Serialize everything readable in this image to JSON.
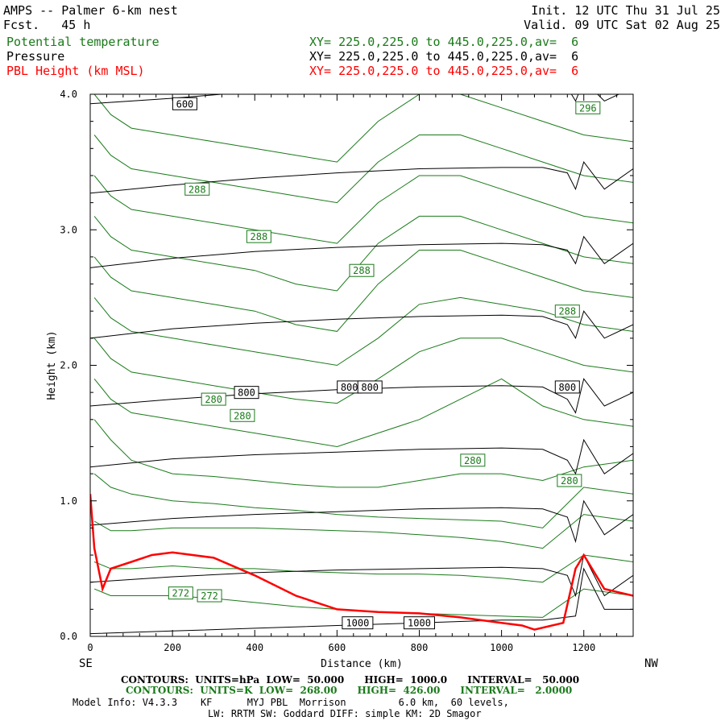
{
  "header": {
    "title": "AMPS -- Palmer 6-km nest",
    "fcst": "Fcst.   45 h",
    "init": "Init. 12 UTC Thu 31 Jul 25",
    "valid": "Valid. 09 UTC Sat 02 Aug 25",
    "field1": "Potential temperature",
    "field2": "Pressure",
    "field3": "PBL Height (km MSL)",
    "xy1": "XY= 225.0,225.0 to 445.0,225.0,av=  6",
    "xy2": "XY= 225.0,225.0 to 445.0,225.0,av=  6",
    "xy3": "XY= 225.0,225.0 to 445.0,225.0,av=  6"
  },
  "footer": {
    "line1": "CONTOURS:  UNITS=hPa  LOW=  50.000      HIGH=  1000.0      INTERVAL=   50.000",
    "line2": "CONTOURS:  UNITS=K  LOW=  268.00      HIGH=  426.00      INTERVAL=   2.0000",
    "line3": "Model Info: V4.3.3    KF      MYJ PBL  Morrison         6.0 km,  60 levels,",
    "line4": "LW: RRTM SW: Goddard DIFF: simple KM: 2D Smagor"
  },
  "colors": {
    "theta": "#1a7a1a",
    "pressure": "#000000",
    "pbl": "#ff0000"
  },
  "chart_data": {
    "type": "line",
    "xlabel": "Distance (km)",
    "ylabel": "Height (km)",
    "xlim": [
      0,
      1320
    ],
    "ylim": [
      0,
      4.0
    ],
    "x_ticks": [
      "0",
      "200",
      "400",
      "600",
      "800",
      "1000",
      "1200"
    ],
    "y_ticks": [
      "0.0",
      "1.0",
      "2.0",
      "3.0",
      "4.0"
    ],
    "left_end_label": "SE",
    "right_end_label": "NW",
    "pressure_contours_hPa": [
      {
        "level": 1000,
        "x": [
          0,
          200,
          400,
          600,
          800,
          1000,
          1100,
          1180,
          1200,
          1250,
          1320
        ],
        "y": [
          0.02,
          0.04,
          0.06,
          0.08,
          0.1,
          0.12,
          0.12,
          0.15,
          0.5,
          0.2,
          0.2
        ]
      },
      {
        "level": 950,
        "x": [
          0,
          200,
          400,
          600,
          800,
          1000,
          1100,
          1160,
          1180,
          1200,
          1250,
          1320
        ],
        "y": [
          0.4,
          0.44,
          0.47,
          0.49,
          0.5,
          0.51,
          0.5,
          0.45,
          0.3,
          0.6,
          0.3,
          0.45
        ]
      },
      {
        "level": 900,
        "x": [
          0,
          200,
          400,
          600,
          800,
          1000,
          1100,
          1160,
          1180,
          1200,
          1250,
          1320
        ],
        "y": [
          0.82,
          0.87,
          0.9,
          0.92,
          0.94,
          0.95,
          0.94,
          0.88,
          0.7,
          1.0,
          0.75,
          0.9
        ]
      },
      {
        "level": 850,
        "x": [
          0,
          200,
          400,
          600,
          800,
          1000,
          1100,
          1160,
          1180,
          1200,
          1250,
          1320
        ],
        "y": [
          1.25,
          1.31,
          1.34,
          1.36,
          1.38,
          1.39,
          1.38,
          1.3,
          1.2,
          1.45,
          1.2,
          1.35
        ]
      },
      {
        "level": 800,
        "x": [
          0,
          200,
          400,
          600,
          800,
          1000,
          1100,
          1160,
          1180,
          1200,
          1250,
          1320
        ],
        "y": [
          1.7,
          1.75,
          1.79,
          1.82,
          1.84,
          1.85,
          1.84,
          1.75,
          1.65,
          1.9,
          1.7,
          1.8
        ]
      },
      {
        "level": 750,
        "x": [
          0,
          200,
          400,
          600,
          800,
          1000,
          1100,
          1160,
          1180,
          1200,
          1250,
          1320
        ],
        "y": [
          2.2,
          2.27,
          2.31,
          2.34,
          2.36,
          2.37,
          2.36,
          2.3,
          2.2,
          2.4,
          2.2,
          2.3
        ]
      },
      {
        "level": 700,
        "x": [
          0,
          200,
          400,
          600,
          800,
          1000,
          1100,
          1160,
          1180,
          1200,
          1250,
          1320
        ],
        "y": [
          2.72,
          2.79,
          2.84,
          2.87,
          2.89,
          2.9,
          2.89,
          2.85,
          2.75,
          2.95,
          2.75,
          2.9
        ]
      },
      {
        "level": 650,
        "x": [
          0,
          200,
          400,
          600,
          800,
          1000,
          1100,
          1160,
          1180,
          1200,
          1250,
          1320
        ],
        "y": [
          3.27,
          3.33,
          3.38,
          3.42,
          3.45,
          3.46,
          3.46,
          3.42,
          3.3,
          3.5,
          3.3,
          3.45
        ]
      },
      {
        "level": 600,
        "x": [
          0,
          200,
          400,
          600,
          800,
          1000,
          1100,
          1160,
          1180,
          1200,
          1250,
          1320
        ],
        "y": [
          3.93,
          3.97,
          4.02,
          4.05,
          4.08,
          4.1,
          4.1,
          4.05,
          3.95,
          4.1,
          3.95,
          4.05
        ]
      }
    ],
    "theta_contours_K": [
      {
        "level": 272,
        "x": [
          10,
          50,
          100,
          200,
          300,
          400,
          500,
          600,
          700,
          800,
          900,
          1000,
          1100,
          1200,
          1320
        ],
        "y": [
          0.35,
          0.3,
          0.3,
          0.3,
          0.28,
          0.25,
          0.22,
          0.2,
          0.18,
          0.17,
          0.16,
          0.15,
          0.14,
          0.35,
          0.3
        ]
      },
      {
        "level": 274,
        "x": [
          10,
          50,
          100,
          200,
          300,
          400,
          500,
          600,
          700,
          800,
          900,
          1000,
          1100,
          1200,
          1320
        ],
        "y": [
          0.55,
          0.5,
          0.5,
          0.52,
          0.5,
          0.5,
          0.48,
          0.47,
          0.46,
          0.46,
          0.45,
          0.43,
          0.4,
          0.6,
          0.55
        ]
      },
      {
        "level": 276,
        "x": [
          10,
          50,
          100,
          200,
          300,
          400,
          500,
          600,
          700,
          800,
          900,
          1000,
          1100,
          1200,
          1320
        ],
        "y": [
          0.85,
          0.78,
          0.78,
          0.8,
          0.8,
          0.8,
          0.79,
          0.78,
          0.77,
          0.75,
          0.73,
          0.7,
          0.65,
          0.9,
          0.85
        ]
      },
      {
        "level": 278,
        "x": [
          10,
          50,
          100,
          200,
          300,
          400,
          500,
          600,
          700,
          800,
          900,
          1000,
          1100,
          1200,
          1320
        ],
        "y": [
          1.2,
          1.1,
          1.05,
          1.0,
          0.98,
          0.95,
          0.93,
          0.9,
          0.88,
          0.87,
          0.86,
          0.85,
          0.8,
          1.1,
          1.05
        ]
      },
      {
        "level": 280,
        "x": [
          10,
          50,
          100,
          200,
          300,
          400,
          500,
          600,
          700,
          800,
          900,
          1000,
          1100,
          1200,
          1320
        ],
        "y": [
          1.6,
          1.45,
          1.3,
          1.2,
          1.18,
          1.15,
          1.12,
          1.1,
          1.1,
          1.15,
          1.2,
          1.2,
          1.15,
          1.25,
          1.3
        ]
      },
      {
        "level": 282,
        "x": [
          10,
          50,
          100,
          200,
          300,
          400,
          500,
          600,
          700,
          800,
          900,
          1000,
          1100,
          1200,
          1320
        ],
        "y": [
          1.9,
          1.75,
          1.65,
          1.6,
          1.55,
          1.5,
          1.45,
          1.4,
          1.5,
          1.6,
          1.75,
          1.9,
          1.7,
          1.6,
          1.55
        ]
      },
      {
        "level": 284,
        "x": [
          10,
          50,
          100,
          200,
          300,
          400,
          500,
          600,
          700,
          800,
          900,
          1000,
          1100,
          1200,
          1320
        ],
        "y": [
          2.2,
          2.05,
          1.95,
          1.9,
          1.85,
          1.8,
          1.75,
          1.72,
          1.9,
          2.1,
          2.2,
          2.2,
          2.1,
          2.0,
          1.95
        ]
      },
      {
        "level": 286,
        "x": [
          10,
          50,
          100,
          200,
          300,
          400,
          500,
          600,
          700,
          800,
          900,
          1000,
          1100,
          1200,
          1320
        ],
        "y": [
          2.5,
          2.35,
          2.25,
          2.2,
          2.15,
          2.1,
          2.05,
          2.0,
          2.2,
          2.45,
          2.5,
          2.45,
          2.4,
          2.3,
          2.25
        ]
      },
      {
        "level": 288,
        "x": [
          10,
          50,
          100,
          200,
          300,
          400,
          500,
          600,
          700,
          800,
          900,
          1000,
          1100,
          1200,
          1320
        ],
        "y": [
          2.8,
          2.65,
          2.55,
          2.5,
          2.45,
          2.4,
          2.3,
          2.25,
          2.6,
          2.85,
          2.85,
          2.75,
          2.65,
          2.55,
          2.5
        ]
      },
      {
        "level": 290,
        "x": [
          10,
          50,
          100,
          200,
          300,
          400,
          500,
          600,
          700,
          800,
          900,
          1000,
          1100,
          1200,
          1320
        ],
        "y": [
          3.1,
          2.95,
          2.85,
          2.8,
          2.75,
          2.7,
          2.6,
          2.55,
          2.9,
          3.1,
          3.1,
          3.0,
          2.9,
          2.8,
          2.75
        ]
      },
      {
        "level": 292,
        "x": [
          10,
          50,
          100,
          200,
          300,
          400,
          500,
          600,
          700,
          800,
          900,
          1000,
          1100,
          1200,
          1320
        ],
        "y": [
          3.4,
          3.25,
          3.15,
          3.1,
          3.05,
          3.0,
          2.95,
          2.9,
          3.2,
          3.4,
          3.4,
          3.3,
          3.2,
          3.1,
          3.05
        ]
      },
      {
        "level": 294,
        "x": [
          10,
          50,
          100,
          200,
          300,
          400,
          500,
          600,
          700,
          800,
          900,
          1000,
          1100,
          1200,
          1320
        ],
        "y": [
          3.7,
          3.55,
          3.45,
          3.4,
          3.35,
          3.3,
          3.25,
          3.2,
          3.5,
          3.7,
          3.7,
          3.6,
          3.5,
          3.4,
          3.35
        ]
      },
      {
        "level": 296,
        "x": [
          10,
          50,
          100,
          200,
          300,
          400,
          500,
          600,
          700,
          800,
          900,
          1000,
          1100,
          1200,
          1320
        ],
        "y": [
          4.0,
          3.85,
          3.75,
          3.7,
          3.65,
          3.6,
          3.55,
          3.5,
          3.8,
          4.0,
          4.0,
          3.9,
          3.8,
          3.7,
          3.65
        ]
      }
    ],
    "pbl_height_km": {
      "x": [
        0,
        10,
        30,
        50,
        100,
        150,
        200,
        300,
        400,
        500,
        600,
        700,
        800,
        900,
        1000,
        1050,
        1080,
        1150,
        1180,
        1200,
        1250,
        1320
      ],
      "y": [
        1.05,
        0.65,
        0.35,
        0.5,
        0.55,
        0.6,
        0.62,
        0.58,
        0.45,
        0.3,
        0.2,
        0.18,
        0.17,
        0.14,
        0.1,
        0.08,
        0.05,
        0.1,
        0.5,
        0.6,
        0.35,
        0.3
      ]
    },
    "contour_labels": [
      {
        "text": "600",
        "x": 230,
        "y": 3.93,
        "color": "pressure"
      },
      {
        "text": "800",
        "x": 380,
        "y": 1.8,
        "color": "pressure"
      },
      {
        "text": "800",
        "x": 630,
        "y": 1.84,
        "color": "pressure"
      },
      {
        "text": "800",
        "x": 680,
        "y": 1.84,
        "color": "pressure"
      },
      {
        "text": "800",
        "x": 1160,
        "y": 1.84,
        "color": "pressure"
      },
      {
        "text": "1000",
        "x": 650,
        "y": 0.1,
        "color": "pressure"
      },
      {
        "text": "1000",
        "x": 800,
        "y": 0.1,
        "color": "pressure"
      },
      {
        "text": "296",
        "x": 1210,
        "y": 3.9,
        "color": "theta"
      },
      {
        "text": "288",
        "x": 260,
        "y": 3.3,
        "color": "theta"
      },
      {
        "text": "288",
        "x": 410,
        "y": 2.95,
        "color": "theta"
      },
      {
        "text": "288",
        "x": 660,
        "y": 2.7,
        "color": "theta"
      },
      {
        "text": "288",
        "x": 1160,
        "y": 2.4,
        "color": "theta"
      },
      {
        "text": "280",
        "x": 300,
        "y": 1.75,
        "color": "theta"
      },
      {
        "text": "280",
        "x": 370,
        "y": 1.63,
        "color": "theta"
      },
      {
        "text": "280",
        "x": 930,
        "y": 1.3,
        "color": "theta"
      },
      {
        "text": "280",
        "x": 1165,
        "y": 1.15,
        "color": "theta"
      },
      {
        "text": "272",
        "x": 220,
        "y": 0.32,
        "color": "theta"
      },
      {
        "text": "272",
        "x": 290,
        "y": 0.3,
        "color": "theta"
      }
    ]
  }
}
